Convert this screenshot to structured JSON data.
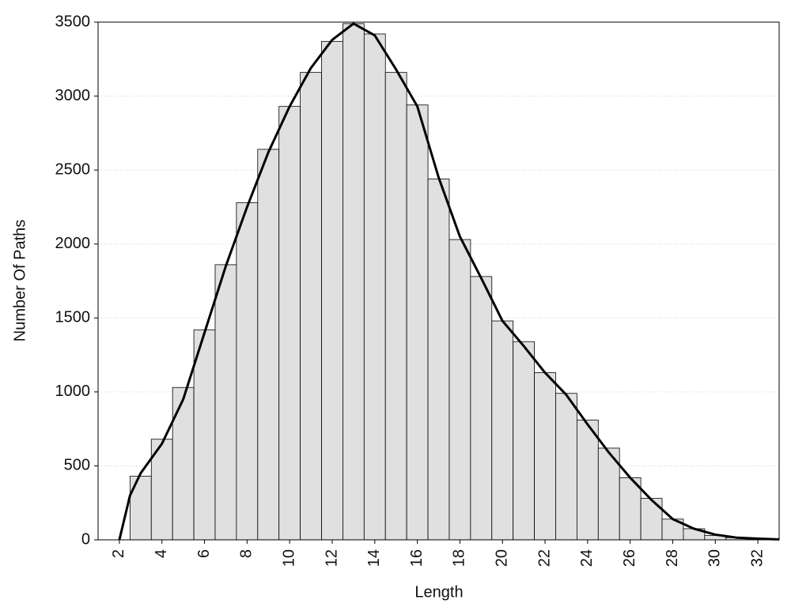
{
  "chart_data": {
    "type": "histogram",
    "xlabel": "Length",
    "ylabel": "Number Of Paths",
    "bins": [
      2.5,
      3.5,
      4.5,
      5.5,
      6.5,
      7.5,
      8.5,
      9.5,
      10.5,
      11.5,
      12.5,
      13.5,
      14.5,
      15.5,
      16.5,
      17.5,
      18.5,
      19.5,
      20.5,
      21.5,
      22.5,
      23.5,
      24.5,
      25.5,
      26.5,
      27.5,
      28.5,
      29.5,
      30.5,
      31.5,
      32.5
    ],
    "values": [
      430,
      680,
      1030,
      1420,
      1860,
      2280,
      2640,
      2930,
      3160,
      3370,
      3490,
      3420,
      3160,
      2940,
      2440,
      2030,
      1780,
      1480,
      1340,
      1130,
      990,
      810,
      620,
      420,
      280,
      140,
      75,
      30,
      15,
      8
    ],
    "color": "#e0e0e0",
    "curve": {
      "color": "#000000",
      "x": [
        2,
        2.5,
        3,
        4,
        5,
        6,
        7,
        8,
        9,
        10,
        11,
        12,
        13,
        14,
        15,
        16,
        17,
        18,
        19,
        20,
        21,
        22,
        23,
        24,
        25,
        26,
        27,
        28,
        29,
        30,
        31,
        32,
        33
      ],
      "values": [
        0,
        300,
        450,
        650,
        950,
        1400,
        1850,
        2250,
        2620,
        2930,
        3190,
        3380,
        3490,
        3410,
        3180,
        2930,
        2450,
        2050,
        1770,
        1480,
        1310,
        1130,
        980,
        780,
        590,
        420,
        270,
        140,
        75,
        35,
        15,
        8,
        3
      ]
    },
    "xlim": [
      1,
      33
    ],
    "ylim": [
      0,
      3500
    ],
    "xticks": [
      2,
      4,
      6,
      8,
      10,
      12,
      14,
      16,
      18,
      20,
      22,
      24,
      26,
      28,
      30,
      32
    ],
    "yticks": [
      0,
      500,
      1000,
      1500,
      2000,
      2500,
      3000,
      3500
    ],
    "grid": true
  }
}
